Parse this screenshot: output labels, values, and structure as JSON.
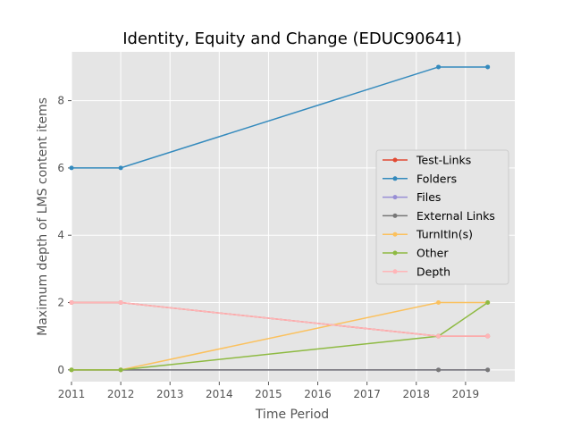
{
  "chart_data": {
    "type": "line",
    "title": "Identity, Equity and Change (EDUC90641)",
    "xlabel": "Time Period",
    "ylabel": "Maximum depth of LMS content items",
    "xlim": [
      2011,
      2020
    ],
    "ylim": [
      -0.35,
      9.45
    ],
    "xticks": [
      "2011",
      "2012",
      "2013",
      "2014",
      "2015",
      "2016",
      "2017",
      "2018",
      "2019"
    ],
    "yticks": [
      "0",
      "2",
      "4",
      "6",
      "8"
    ],
    "grid": true,
    "legend_position": "center-right",
    "series": [
      {
        "name": "Test-Links",
        "color": "#e24a33",
        "x": [
          2011,
          2012,
          2018.45,
          2019.45
        ],
        "values": [
          2,
          2,
          1,
          1
        ]
      },
      {
        "name": "Folders",
        "color": "#348abd",
        "x": [
          2011,
          2012,
          2018.45,
          2019.45
        ],
        "values": [
          6,
          6,
          9,
          9
        ]
      },
      {
        "name": "Files",
        "color": "#988ed5",
        "x": [
          2011,
          2012,
          2018.45,
          2019.45
        ],
        "values": [
          0,
          0,
          0,
          0
        ]
      },
      {
        "name": "External Links",
        "color": "#777777",
        "x": [
          2011,
          2012,
          2018.45,
          2019.45
        ],
        "values": [
          0,
          0,
          0,
          0
        ]
      },
      {
        "name": "TurnItIn(s)",
        "color": "#fbc15e",
        "x": [
          2011,
          2012,
          2018.45,
          2019.45
        ],
        "values": [
          0,
          0,
          2,
          2
        ]
      },
      {
        "name": "Other",
        "color": "#8eba42",
        "x": [
          2011,
          2012,
          2018.45,
          2019.45
        ],
        "values": [
          0,
          0,
          1,
          2
        ]
      },
      {
        "name": "Depth",
        "color": "#ffb5b8",
        "x": [
          2011,
          2012,
          2018.45,
          2019.45
        ],
        "values": [
          2,
          2,
          1,
          1
        ]
      }
    ]
  }
}
